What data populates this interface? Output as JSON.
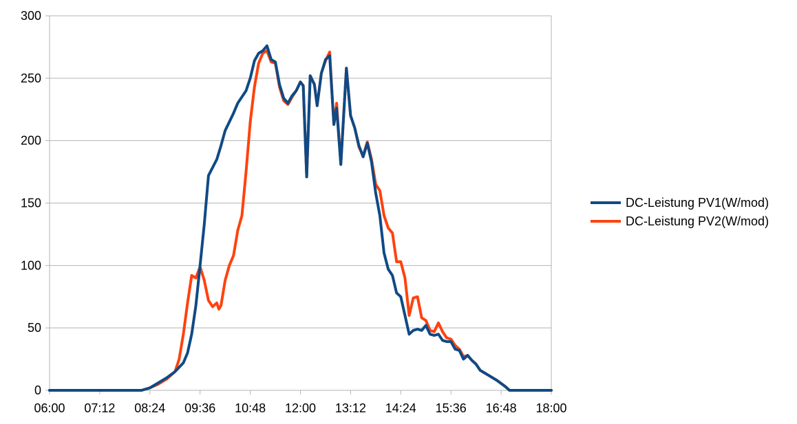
{
  "chart_data": {
    "type": "line",
    "title": "",
    "xlabel": "",
    "ylabel": "",
    "xlim": [
      "06:00",
      "18:00"
    ],
    "ylim": [
      0,
      300
    ],
    "x_ticks": [
      "06:00",
      "07:12",
      "08:24",
      "09:36",
      "10:48",
      "12:00",
      "13:12",
      "14:24",
      "15:36",
      "16:48",
      "18:00"
    ],
    "y_ticks": [
      0,
      50,
      100,
      150,
      200,
      250,
      300
    ],
    "grid": "horizontal",
    "legend_position": "right",
    "series": [
      {
        "name": "DC-Leistung PV1(W/mod)",
        "color": "#0f4a85",
        "points": [
          [
            "06:00",
            0
          ],
          [
            "08:12",
            0
          ],
          [
            "08:24",
            2
          ],
          [
            "08:36",
            6
          ],
          [
            "08:48",
            10
          ],
          [
            "09:00",
            15
          ],
          [
            "09:12",
            22
          ],
          [
            "09:18",
            30
          ],
          [
            "09:24",
            45
          ],
          [
            "09:30",
            68
          ],
          [
            "09:36",
            100
          ],
          [
            "09:42",
            133
          ],
          [
            "09:48",
            172
          ],
          [
            "10:00",
            185
          ],
          [
            "10:06",
            196
          ],
          [
            "10:12",
            208
          ],
          [
            "10:24",
            222
          ],
          [
            "10:30",
            230
          ],
          [
            "10:42",
            240
          ],
          [
            "10:48",
            250
          ],
          [
            "10:54",
            264
          ],
          [
            "11:00",
            270
          ],
          [
            "11:06",
            272
          ],
          [
            "11:12",
            276
          ],
          [
            "11:18",
            265
          ],
          [
            "11:24",
            263
          ],
          [
            "11:30",
            245
          ],
          [
            "11:36",
            234
          ],
          [
            "11:42",
            230
          ],
          [
            "11:48",
            236
          ],
          [
            "11:54",
            240
          ],
          [
            "12:00",
            247
          ],
          [
            "12:04",
            244
          ],
          [
            "12:09",
            171
          ],
          [
            "12:14",
            252
          ],
          [
            "12:20",
            245
          ],
          [
            "12:24",
            228
          ],
          [
            "12:30",
            254
          ],
          [
            "12:36",
            265
          ],
          [
            "12:42",
            268
          ],
          [
            "12:48",
            213
          ],
          [
            "12:52",
            226
          ],
          [
            "12:58",
            181
          ],
          [
            "13:06",
            258
          ],
          [
            "13:12",
            220
          ],
          [
            "13:18",
            210
          ],
          [
            "13:24",
            196
          ],
          [
            "13:30",
            187
          ],
          [
            "13:36",
            198
          ],
          [
            "13:42",
            183
          ],
          [
            "13:48",
            158
          ],
          [
            "13:54",
            140
          ],
          [
            "14:00",
            110
          ],
          [
            "14:06",
            97
          ],
          [
            "14:12",
            92
          ],
          [
            "14:18",
            78
          ],
          [
            "14:24",
            75
          ],
          [
            "14:30",
            60
          ],
          [
            "14:36",
            45
          ],
          [
            "14:42",
            48
          ],
          [
            "14:48",
            49
          ],
          [
            "14:54",
            48
          ],
          [
            "15:00",
            52
          ],
          [
            "15:06",
            45
          ],
          [
            "15:12",
            44
          ],
          [
            "15:18",
            45
          ],
          [
            "15:24",
            40
          ],
          [
            "15:30",
            39
          ],
          [
            "15:36",
            39
          ],
          [
            "15:42",
            33
          ],
          [
            "15:48",
            32
          ],
          [
            "15:54",
            25
          ],
          [
            "16:00",
            28
          ],
          [
            "16:06",
            24
          ],
          [
            "16:12",
            21
          ],
          [
            "16:18",
            16
          ],
          [
            "16:30",
            12
          ],
          [
            "16:42",
            8
          ],
          [
            "16:54",
            3
          ],
          [
            "17:00",
            0
          ],
          [
            "18:00",
            0
          ]
        ]
      },
      {
        "name": "DC-Leistung PV2(W/mod)",
        "color": "#ff420e",
        "points": [
          [
            "06:00",
            0
          ],
          [
            "08:12",
            0
          ],
          [
            "08:24",
            2
          ],
          [
            "08:36",
            5
          ],
          [
            "08:48",
            9
          ],
          [
            "09:00",
            15
          ],
          [
            "09:06",
            25
          ],
          [
            "09:12",
            45
          ],
          [
            "09:18",
            70
          ],
          [
            "09:24",
            92
          ],
          [
            "09:30",
            90
          ],
          [
            "09:36",
            99
          ],
          [
            "09:42",
            88
          ],
          [
            "09:48",
            72
          ],
          [
            "09:54",
            67
          ],
          [
            "10:00",
            70
          ],
          [
            "10:03",
            65
          ],
          [
            "10:06",
            68
          ],
          [
            "10:12",
            88
          ],
          [
            "10:18",
            100
          ],
          [
            "10:24",
            108
          ],
          [
            "10:30",
            128
          ],
          [
            "10:36",
            140
          ],
          [
            "10:42",
            175
          ],
          [
            "10:48",
            215
          ],
          [
            "10:54",
            243
          ],
          [
            "11:00",
            262
          ],
          [
            "11:06",
            270
          ],
          [
            "11:12",
            272
          ],
          [
            "11:18",
            263
          ],
          [
            "11:24",
            262
          ],
          [
            "11:30",
            243
          ],
          [
            "11:36",
            232
          ],
          [
            "11:42",
            229
          ],
          [
            "11:48",
            235
          ],
          [
            "11:54",
            240
          ],
          [
            "12:00",
            247
          ],
          [
            "12:04",
            244
          ],
          [
            "12:09",
            171
          ],
          [
            "12:14",
            252
          ],
          [
            "12:20",
            245
          ],
          [
            "12:24",
            228
          ],
          [
            "12:30",
            254
          ],
          [
            "12:36",
            264
          ],
          [
            "12:42",
            271
          ],
          [
            "12:48",
            213
          ],
          [
            "12:52",
            230
          ],
          [
            "12:58",
            181
          ],
          [
            "13:06",
            258
          ],
          [
            "13:12",
            220
          ],
          [
            "13:18",
            210
          ],
          [
            "13:24",
            195
          ],
          [
            "13:30",
            188
          ],
          [
            "13:36",
            199
          ],
          [
            "13:42",
            185
          ],
          [
            "13:48",
            165
          ],
          [
            "13:54",
            160
          ],
          [
            "14:00",
            140
          ],
          [
            "14:06",
            130
          ],
          [
            "14:12",
            126
          ],
          [
            "14:18",
            103
          ],
          [
            "14:24",
            103
          ],
          [
            "14:30",
            90
          ],
          [
            "14:36",
            60
          ],
          [
            "14:42",
            74
          ],
          [
            "14:48",
            75
          ],
          [
            "14:54",
            58
          ],
          [
            "15:00",
            56
          ],
          [
            "15:06",
            48
          ],
          [
            "15:12",
            47
          ],
          [
            "15:18",
            54
          ],
          [
            "15:24",
            47
          ],
          [
            "15:30",
            42
          ],
          [
            "15:36",
            41
          ],
          [
            "15:42",
            36
          ],
          [
            "15:48",
            33
          ],
          [
            "15:54",
            27
          ],
          [
            "16:00",
            28
          ],
          [
            "16:06",
            24
          ],
          [
            "16:12",
            21
          ],
          [
            "16:18",
            16
          ],
          [
            "16:30",
            12
          ],
          [
            "16:42",
            8
          ],
          [
            "16:54",
            3
          ],
          [
            "17:00",
            0
          ],
          [
            "18:00",
            0
          ]
        ]
      }
    ]
  }
}
